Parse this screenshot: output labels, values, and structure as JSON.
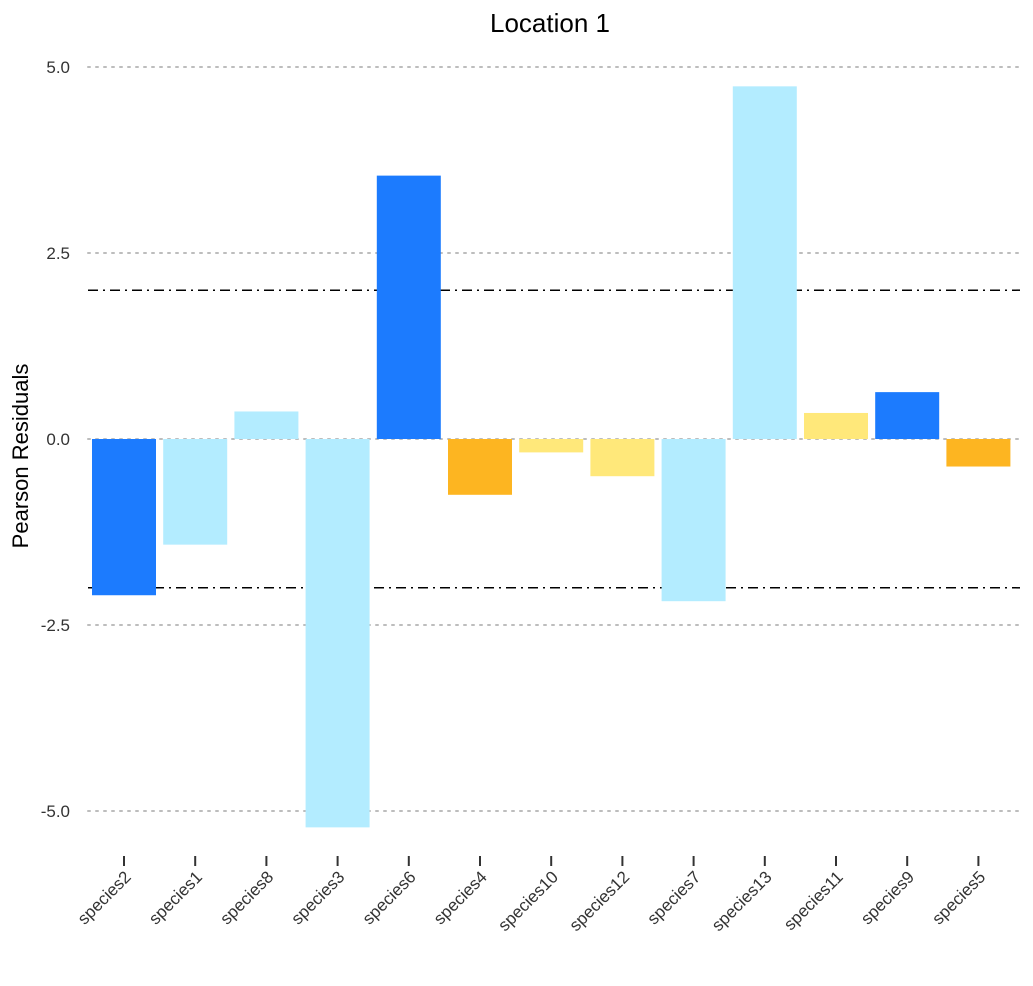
{
  "chart_data": {
    "type": "bar",
    "title": "Location 1",
    "xlabel": "",
    "ylabel": "Pearson Residuals",
    "ylim": [
      -5.5,
      5.2
    ],
    "yticks": [
      5.0,
      2.5,
      0.0,
      -2.5,
      -5.0
    ],
    "ytick_labels": [
      "5.0",
      "2.5",
      "0.0",
      "-2.5",
      "-5.0"
    ],
    "reference_lines": [
      2,
      -2
    ],
    "grid": "horizontal-dotted",
    "legend": "none",
    "categories": [
      "species2",
      "species1",
      "species8",
      "species3",
      "species6",
      "species4",
      "species10",
      "species12",
      "species7",
      "species13",
      "species11",
      "species9",
      "species5"
    ],
    "values": [
      -2.1,
      -1.42,
      0.37,
      -5.22,
      3.54,
      -0.75,
      -0.18,
      -0.5,
      -2.18,
      4.74,
      0.35,
      0.63,
      -0.37
    ],
    "colors": [
      "#1c7bfe",
      "#b3ecff",
      "#b3ecff",
      "#b3ecff",
      "#1c7bfe",
      "#fdb521",
      "#ffe87a",
      "#ffe87a",
      "#b3ecff",
      "#b3ecff",
      "#ffe87a",
      "#1c7bfe",
      "#fdb521"
    ]
  }
}
